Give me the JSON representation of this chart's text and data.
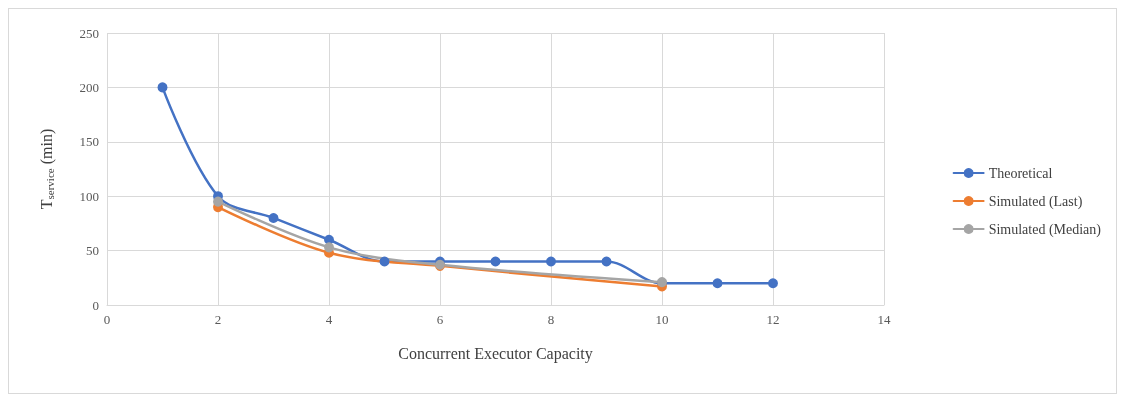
{
  "chart_data": {
    "type": "line",
    "xlabel": "Concurrent Executor Capacity",
    "ylabel": "T$_{service}$ (min)",
    "xlim": [
      0,
      14
    ],
    "xticks": [
      0,
      2,
      4,
      6,
      8,
      10,
      12,
      14
    ],
    "ylim": [
      0,
      250
    ],
    "yticks": [
      0,
      50,
      100,
      150,
      200,
      250
    ],
    "grid": true,
    "legend": "right",
    "marker": "circle",
    "line_style": "solid",
    "series": [
      {
        "name": "Theoretical",
        "color": "#4472c4",
        "x": [
          1,
          2,
          3,
          4,
          5,
          6,
          7,
          8,
          9,
          10,
          11,
          12
        ],
        "values": [
          200,
          100,
          80,
          60,
          40,
          40,
          40,
          40,
          40,
          20,
          20,
          20
        ]
      },
      {
        "name": "Simulated (Last)",
        "color": "#ed7d31",
        "x": [
          2,
          4,
          6,
          10
        ],
        "values": [
          90,
          48,
          36,
          17
        ]
      },
      {
        "name": "Simulated (Median)",
        "color": "#a5a5a5",
        "x": [
          2,
          4,
          6,
          10
        ],
        "values": [
          95,
          53,
          37,
          21
        ]
      }
    ]
  }
}
